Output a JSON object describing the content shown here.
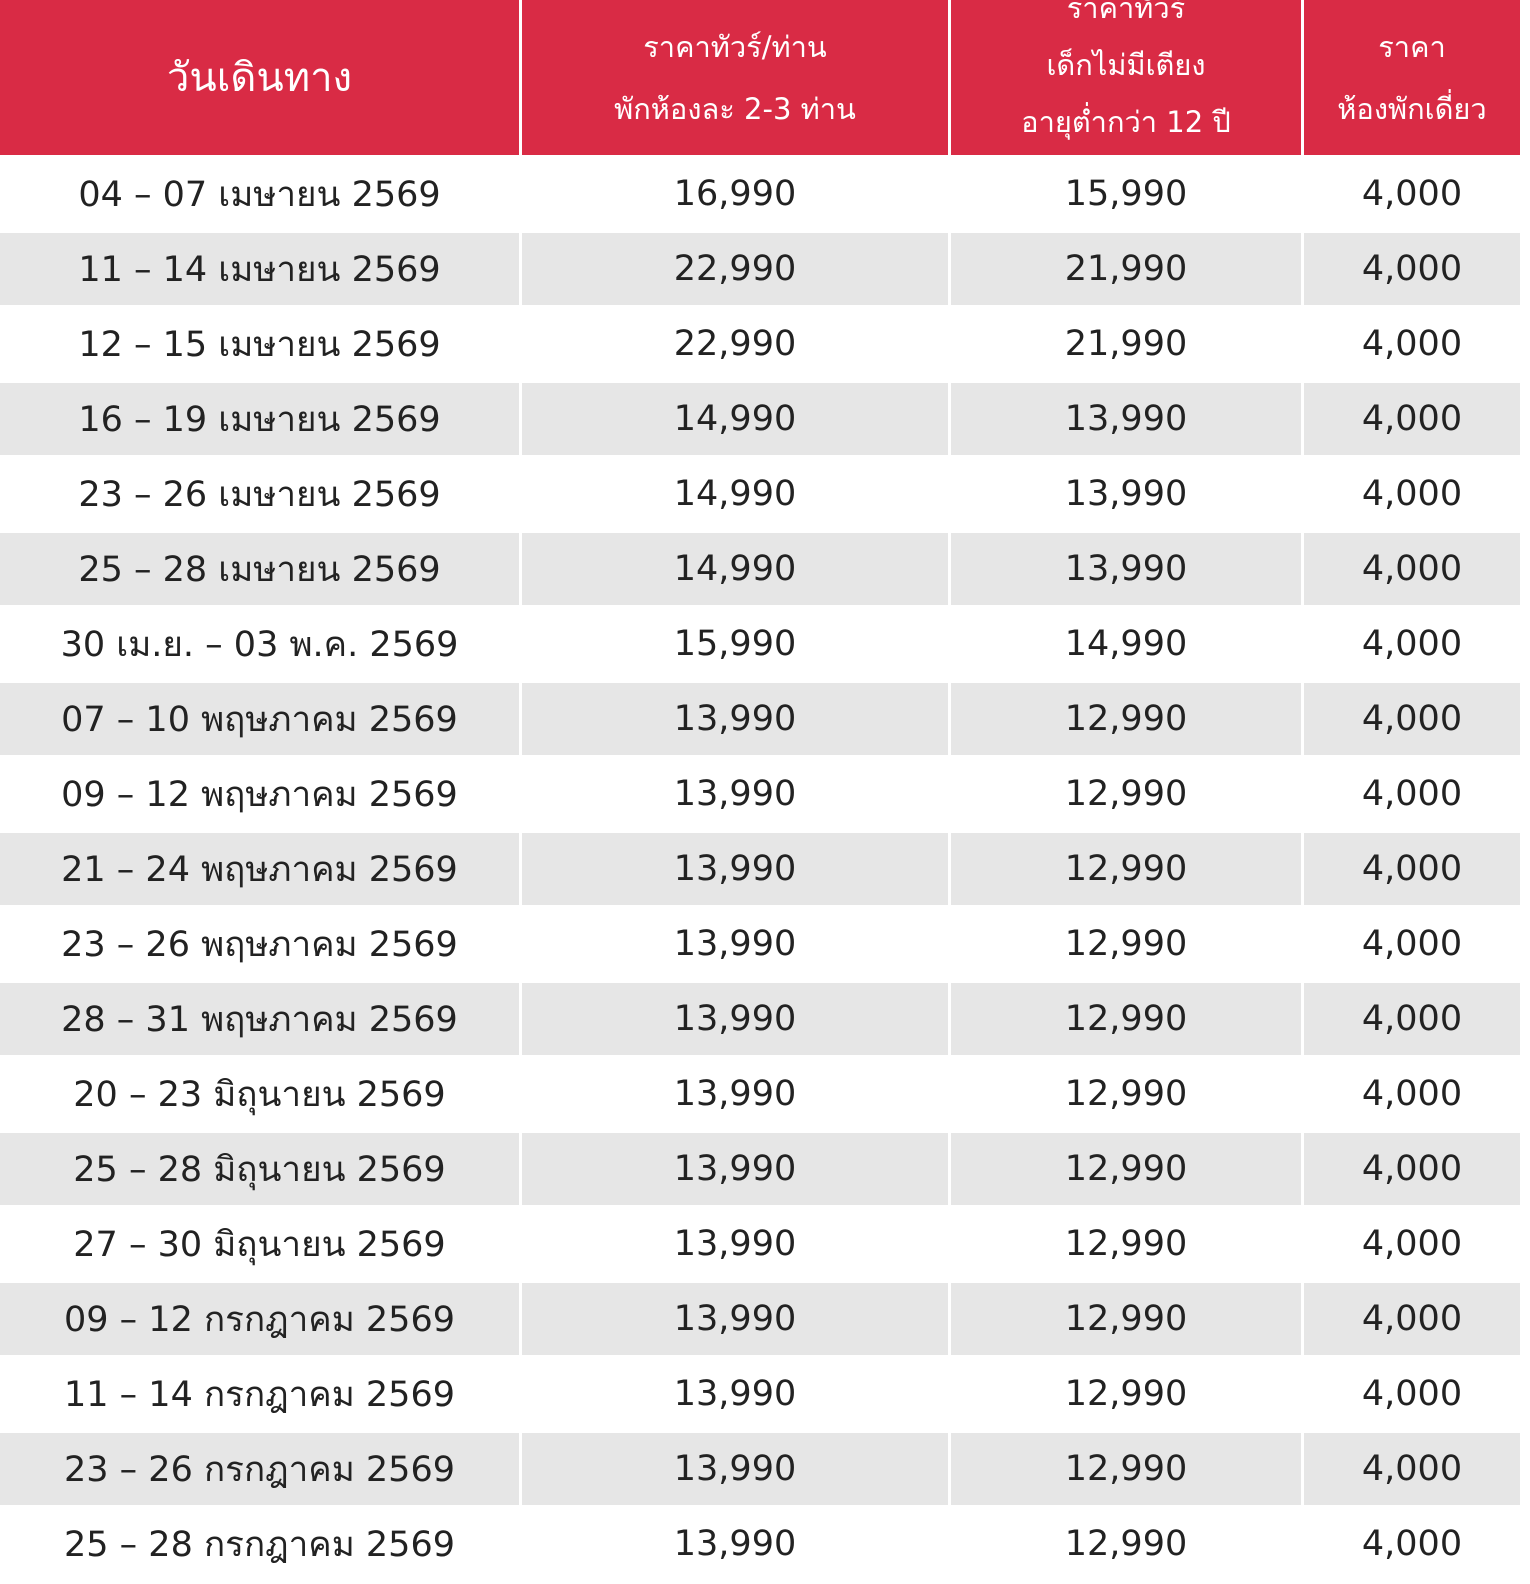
{
  "header": {
    "date": "วันเดินทาง",
    "adult_price": [
      "ราคาทัวร์/ท่าน",
      "พักห้องละ 2-3 ท่าน"
    ],
    "child_price": [
      "ราคาทัวร์",
      "เด็กไม่มีเตียง",
      "อายุต่ำกว่า 12 ปี"
    ],
    "single_room": [
      "ราคา",
      "ห้องพักเดี่ยว"
    ]
  },
  "colors": {
    "header_bg": "#d92b45",
    "stripe": "#e6e6e6"
  },
  "rows": [
    {
      "date": "04 – 07 เมษายน 2569",
      "adult": "16,990",
      "child": "15,990",
      "single": "4,000"
    },
    {
      "date": "11 – 14 เมษายน 2569",
      "adult": "22,990",
      "child": "21,990",
      "single": "4,000"
    },
    {
      "date": "12 – 15 เมษายน 2569",
      "adult": "22,990",
      "child": "21,990",
      "single": "4,000"
    },
    {
      "date": "16 – 19 เมษายน 2569",
      "adult": "14,990",
      "child": "13,990",
      "single": "4,000"
    },
    {
      "date": "23 – 26 เมษายน 2569",
      "adult": "14,990",
      "child": "13,990",
      "single": "4,000"
    },
    {
      "date": "25 – 28 เมษายน 2569",
      "adult": "14,990",
      "child": "13,990",
      "single": "4,000"
    },
    {
      "date": "30 เม.ย. – 03 พ.ค. 2569",
      "adult": "15,990",
      "child": "14,990",
      "single": "4,000"
    },
    {
      "date": "07 – 10 พฤษภาคม 2569",
      "adult": "13,990",
      "child": "12,990",
      "single": "4,000"
    },
    {
      "date": "09 – 12 พฤษภาคม 2569",
      "adult": "13,990",
      "child": "12,990",
      "single": "4,000"
    },
    {
      "date": "21 – 24 พฤษภาคม 2569",
      "adult": "13,990",
      "child": "12,990",
      "single": "4,000"
    },
    {
      "date": "23 – 26 พฤษภาคม 2569",
      "adult": "13,990",
      "child": "12,990",
      "single": "4,000"
    },
    {
      "date": "28 – 31 พฤษภาคม 2569",
      "adult": "13,990",
      "child": "12,990",
      "single": "4,000"
    },
    {
      "date": "20 – 23 มิถุนายน 2569",
      "adult": "13,990",
      "child": "12,990",
      "single": "4,000"
    },
    {
      "date": "25 – 28 มิถุนายน 2569",
      "adult": "13,990",
      "child": "12,990",
      "single": "4,000"
    },
    {
      "date": "27 – 30 มิถุนายน 2569",
      "adult": "13,990",
      "child": "12,990",
      "single": "4,000"
    },
    {
      "date": "09 – 12 กรกฎาคม 2569",
      "adult": "13,990",
      "child": "12,990",
      "single": "4,000"
    },
    {
      "date": "11 – 14 กรกฎาคม 2569",
      "adult": "13,990",
      "child": "12,990",
      "single": "4,000"
    },
    {
      "date": "23 – 26 กรกฎาคม 2569",
      "adult": "13,990",
      "child": "12,990",
      "single": "4,000"
    },
    {
      "date": "25 – 28 กรกฎาคม 2569",
      "adult": "13,990",
      "child": "12,990",
      "single": "4,000"
    }
  ]
}
